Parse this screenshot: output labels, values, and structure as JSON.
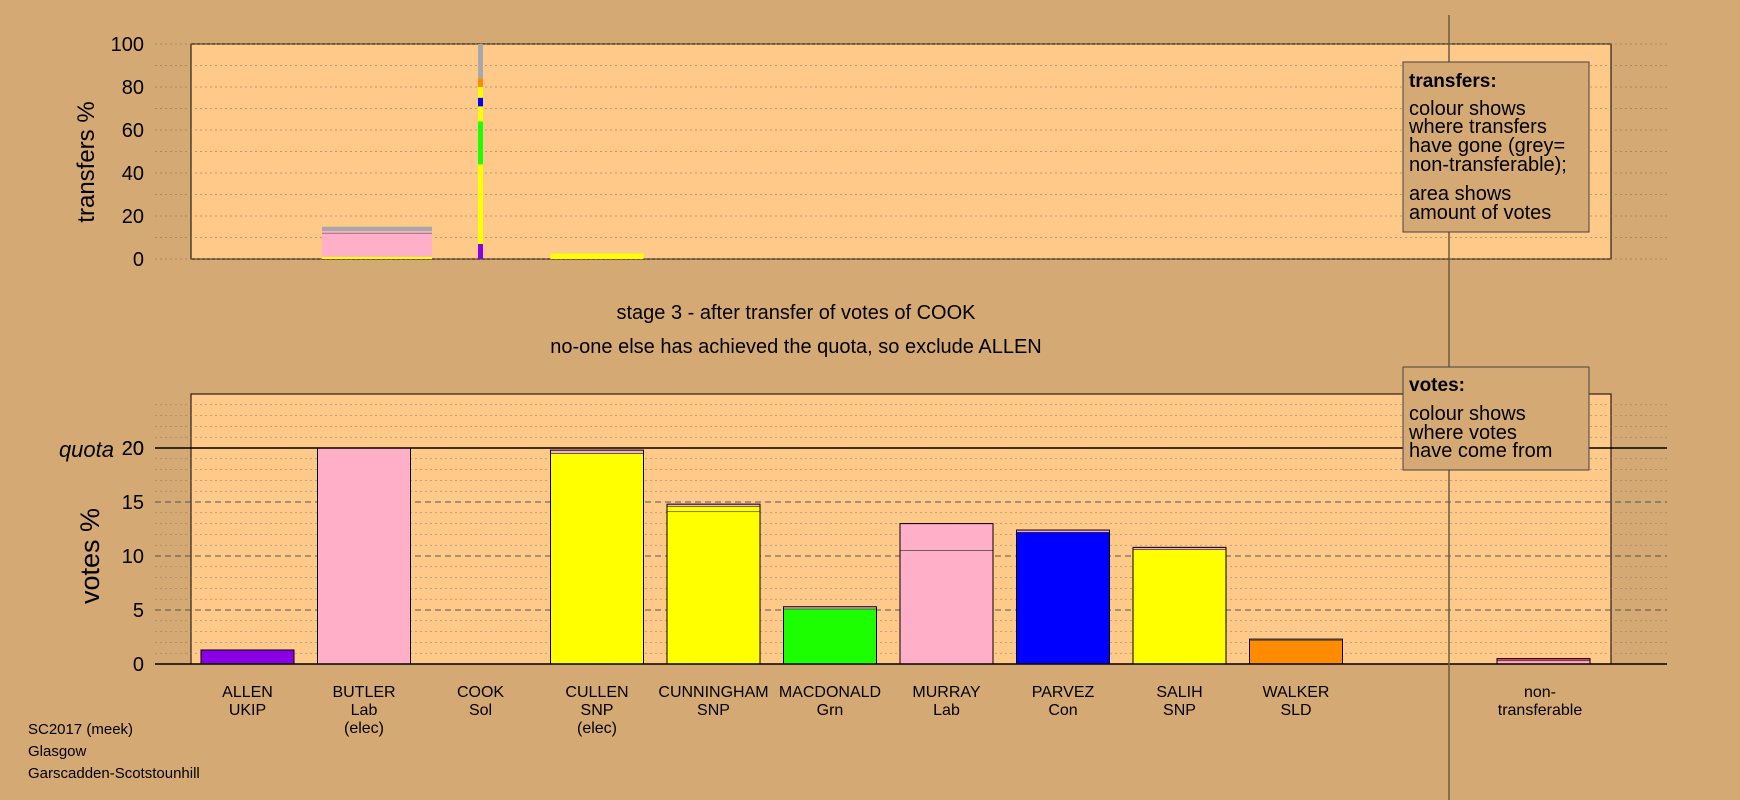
{
  "colors": {
    "background": "#d5a974",
    "plot_background": "#ffc98a",
    "UKIP": "#8a00e6",
    "Lab": "#ffb0c8",
    "Sol": "#ff4040",
    "SNP": "#ffff00",
    "Grn": "#1cff00",
    "Con": "#0000ff",
    "SLD": "#ff8c00",
    "non_transferable": "#a8a8a8"
  },
  "stage": {
    "line1": "stage 3 - after transfer of votes of COOK",
    "line2": "no-one else has achieved the quota, so exclude ALLEN"
  },
  "footer": {
    "line1": "SC2017 (meek)",
    "line2": "Glasgow",
    "line3": "Garscadden-Scotstounhill"
  },
  "quota_label": "quota",
  "legend_transfers": {
    "title": "transfers:",
    "lines1": [
      "colour shows",
      "where transfers",
      "have gone (grey=",
      "non-transferable);"
    ],
    "lines2": [
      "area shows",
      "amount of votes"
    ]
  },
  "legend_votes": {
    "title": "votes:",
    "lines": [
      "colour shows",
      "where votes",
      "have come from"
    ]
  },
  "chart_data": [
    {
      "type": "bar",
      "chart": "transfers",
      "ylabel": "transfers %",
      "ylim": [
        0,
        100
      ],
      "yticks": [
        0,
        20,
        40,
        60,
        80,
        100
      ],
      "grid": true,
      "categories": [
        "ALLEN",
        "BUTLER",
        "COOK",
        "CULLEN",
        "CUNNINGHAM",
        "MACDONALD",
        "MURRAY",
        "PARVEZ",
        "SALIH",
        "WALKER"
      ],
      "bars": [
        {
          "candidate": "BUTLER",
          "segments": [
            {
              "party": "SNP",
              "value": 1
            },
            {
              "party": "Lab",
              "value": 12
            },
            {
              "party": "non_transferable",
              "value": 2
            }
          ]
        },
        {
          "candidate": "COOK",
          "segments": [
            {
              "party": "UKIP",
              "value": 7
            },
            {
              "party": "SNP",
              "value": 37
            },
            {
              "party": "Grn",
              "value": 20
            },
            {
              "party": "SNP",
              "value": 7
            },
            {
              "party": "Con",
              "value": 4
            },
            {
              "party": "SNP",
              "value": 5
            },
            {
              "party": "SLD",
              "value": 4
            },
            {
              "party": "non_transferable",
              "value": 16
            }
          ]
        },
        {
          "candidate": "CULLEN",
          "segments": [
            {
              "party": "SNP",
              "value": 2.5
            }
          ]
        }
      ]
    },
    {
      "type": "bar",
      "chart": "votes",
      "ylabel": "votes %",
      "ylim": [
        0,
        20
      ],
      "yticks": [
        0,
        5,
        10,
        15,
        20
      ],
      "quota": 20,
      "grid": true,
      "categories": [
        {
          "name": "ALLEN",
          "party": "UKIP",
          "note": ""
        },
        {
          "name": "BUTLER",
          "party": "Lab",
          "note": "(elec)"
        },
        {
          "name": "COOK",
          "party": "Sol",
          "note": ""
        },
        {
          "name": "CULLEN",
          "party": "SNP",
          "note": "(elec)"
        },
        {
          "name": "CUNNINGHAM",
          "party": "SNP",
          "note": ""
        },
        {
          "name": "MACDONALD",
          "party": "Grn",
          "note": ""
        },
        {
          "name": "MURRAY",
          "party": "Lab",
          "note": ""
        },
        {
          "name": "PARVEZ",
          "party": "Con",
          "note": ""
        },
        {
          "name": "SALIH",
          "party": "SNP",
          "note": ""
        },
        {
          "name": "WALKER",
          "party": "SLD",
          "note": ""
        },
        {
          "name": "non-",
          "party": "transferable",
          "note": ""
        }
      ],
      "bars": [
        {
          "candidate": "ALLEN",
          "segments": [
            {
              "party": "UKIP",
              "value": 1.3
            }
          ]
        },
        {
          "candidate": "BUTLER",
          "segments": [
            {
              "party": "Lab",
              "value": 20
            }
          ]
        },
        {
          "candidate": "COOK",
          "segments": []
        },
        {
          "candidate": "CULLEN",
          "segments": [
            {
              "party": "SNP",
              "value": 19.5
            },
            {
              "party": "Lab",
              "value": 0.3
            }
          ]
        },
        {
          "candidate": "CUNNINGHAM",
          "segments": [
            {
              "party": "SNP",
              "value": 14.1
            },
            {
              "party": "SNP",
              "value": 0.5
            },
            {
              "party": "Lab",
              "value": 0.2
            }
          ]
        },
        {
          "candidate": "MACDONALD",
          "segments": [
            {
              "party": "Grn",
              "value": 5.1
            },
            {
              "party": "Lab",
              "value": 0.2
            }
          ]
        },
        {
          "candidate": "MURRAY",
          "segments": [
            {
              "party": "Lab",
              "value": 10.5
            },
            {
              "party": "Lab",
              "value": 2.5
            }
          ]
        },
        {
          "candidate": "PARVEZ",
          "segments": [
            {
              "party": "Con",
              "value": 12.2
            },
            {
              "party": "Lab",
              "value": 0.2
            }
          ]
        },
        {
          "candidate": "SALIH",
          "segments": [
            {
              "party": "SNP",
              "value": 10.6
            },
            {
              "party": "Lab",
              "value": 0.2
            }
          ]
        },
        {
          "candidate": "WALKER",
          "segments": [
            {
              "party": "SLD",
              "value": 2.2
            },
            {
              "party": "Lab",
              "value": 0.1
            }
          ]
        },
        {
          "candidate": "non-transferable",
          "segments": [
            {
              "party": "Lab",
              "value": 0.3
            },
            {
              "party": "Sol",
              "value": 0.2
            }
          ]
        }
      ]
    }
  ]
}
